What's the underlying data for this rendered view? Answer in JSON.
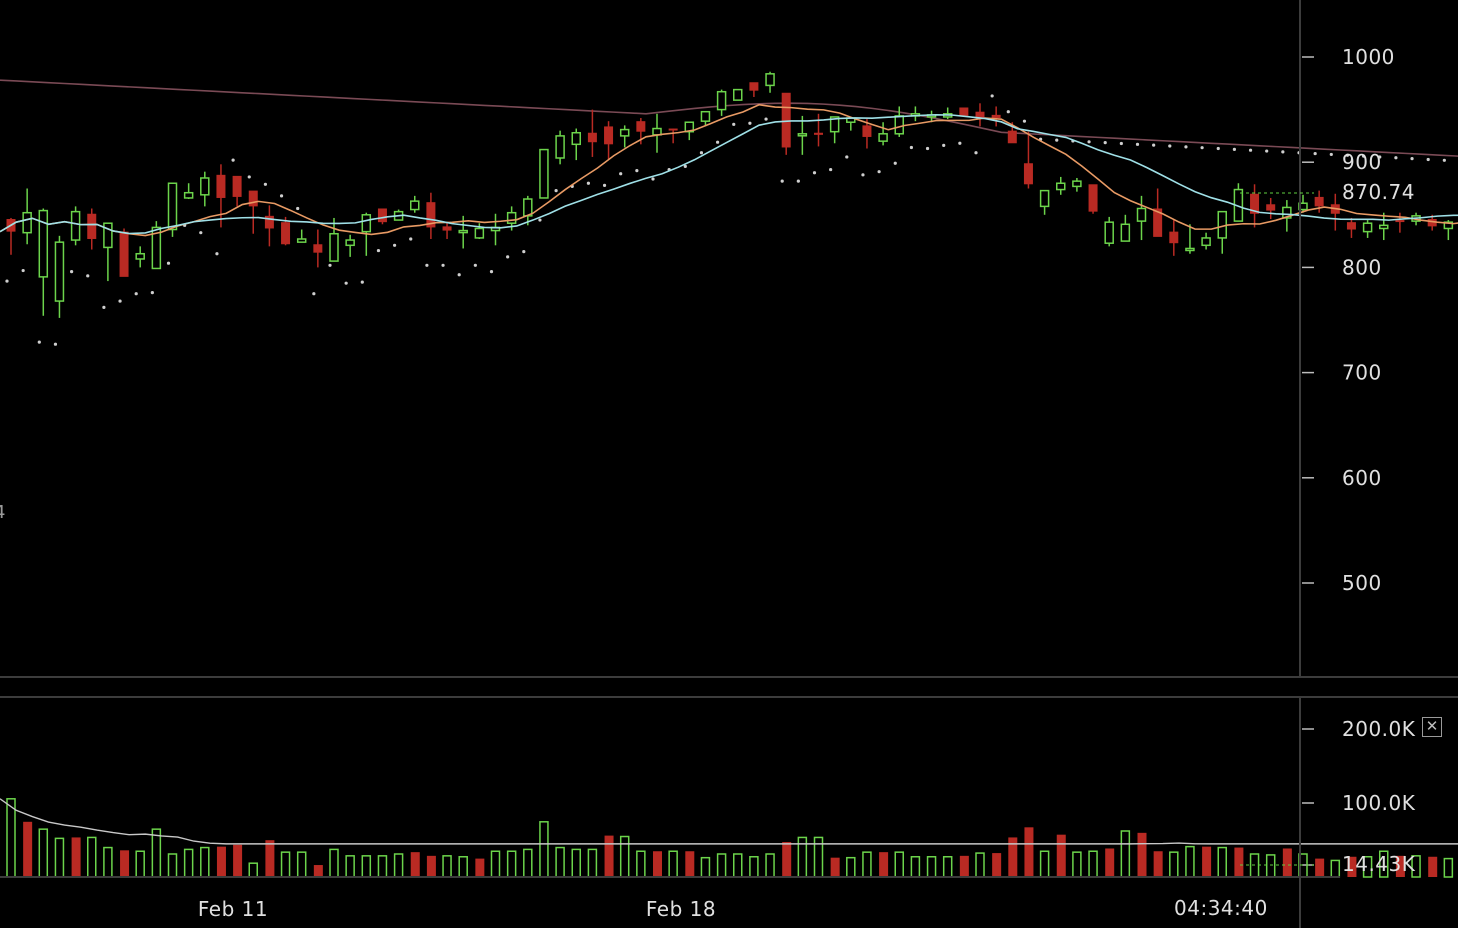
{
  "chart_data": {
    "type": "candlestick",
    "price_axis": {
      "ticks": [
        500,
        600,
        700,
        800,
        900,
        1000
      ],
      "labels": [
        "500",
        "600",
        "700",
        "800",
        "900",
        "1000"
      ],
      "ylim": [
        425,
        1065
      ]
    },
    "volume_axis": {
      "ticks": [
        14430,
        100000,
        200000
      ],
      "labels": [
        "14.43K",
        "100.0K",
        "200.0K"
      ]
    },
    "x_labels": [
      "Feb 11",
      "Feb 18"
    ],
    "last_price": "870.74",
    "last_volume": "14.43K",
    "clock": "04:34:40",
    "edge_text": "4",
    "colors": {
      "up": "#6cd44b",
      "down": "#b92a23",
      "ma_fast": "#e89a64",
      "ma_mid": "#9fe0e7",
      "ma_slow": "#7a4a55",
      "sar": "#cfcfcf",
      "volume_ma": "#c8c8c8",
      "grid": "#3a3a3a"
    },
    "candles": [
      [
        846,
        834,
        847,
        812
      ],
      [
        833,
        852,
        875,
        822
      ],
      [
        791,
        854,
        856,
        754
      ],
      [
        768,
        824,
        830,
        752
      ],
      [
        826,
        853,
        858,
        821
      ],
      [
        851,
        827,
        856,
        817
      ],
      [
        819,
        842,
        842,
        787
      ],
      [
        834,
        791,
        837,
        793
      ],
      [
        808,
        813,
        820,
        800
      ],
      [
        799,
        838,
        844,
        801
      ],
      [
        836,
        880,
        880,
        829
      ],
      [
        866,
        871,
        880,
        865
      ],
      [
        869,
        885,
        891,
        858
      ],
      [
        888,
        866,
        898,
        838
      ],
      [
        887,
        867,
        882,
        858
      ],
      [
        873,
        858,
        866,
        832
      ],
      [
        849,
        837,
        859,
        820
      ],
      [
        843,
        822,
        848,
        821
      ],
      [
        824,
        827,
        836,
        824
      ],
      [
        822,
        814,
        836,
        800
      ],
      [
        806,
        832,
        847,
        827
      ],
      [
        821,
        826,
        831,
        810
      ],
      [
        834,
        850,
        852,
        811
      ],
      [
        856,
        843,
        854,
        841
      ],
      [
        845,
        853,
        855,
        846
      ],
      [
        855,
        863,
        868,
        852
      ],
      [
        862,
        838,
        871,
        827
      ],
      [
        839,
        835,
        843,
        827
      ],
      [
        834,
        835,
        849,
        818
      ],
      [
        828,
        837,
        842,
        827
      ],
      [
        835,
        838,
        851,
        821
      ],
      [
        842,
        852,
        858,
        835
      ],
      [
        849,
        865,
        868,
        840
      ],
      [
        866,
        912,
        912,
        870
      ],
      [
        904,
        925,
        930,
        898
      ],
      [
        917,
        928,
        932,
        902
      ],
      [
        928,
        919,
        950,
        905
      ],
      [
        934,
        917,
        939,
        903
      ],
      [
        925,
        931,
        935,
        914
      ],
      [
        939,
        929,
        942,
        917
      ],
      [
        926,
        932,
        946,
        909
      ],
      [
        932,
        931,
        932,
        918
      ],
      [
        929,
        938,
        933,
        921
      ],
      [
        939,
        948,
        942,
        934
      ],
      [
        950,
        967,
        969,
        944
      ],
      [
        959,
        969,
        967,
        961
      ],
      [
        976,
        968,
        970,
        962
      ],
      [
        973,
        984,
        986,
        966
      ],
      [
        966,
        914,
        962,
        907
      ],
      [
        926,
        927,
        944,
        907
      ],
      [
        928,
        926,
        946,
        915
      ],
      [
        929,
        943,
        942,
        918
      ],
      [
        938,
        942,
        940,
        930
      ],
      [
        935,
        924,
        941,
        913
      ],
      [
        920,
        927,
        938,
        916
      ],
      [
        927,
        944,
        953,
        924
      ],
      [
        944,
        946,
        953,
        939
      ],
      [
        944,
        945,
        949,
        938
      ],
      [
        943,
        946,
        952,
        941
      ],
      [
        952,
        944,
        950,
        943
      ],
      [
        948,
        942,
        956,
        934
      ],
      [
        945,
        942,
        953,
        934
      ],
      [
        930,
        918,
        938,
        924
      ],
      [
        899,
        879,
        929,
        875
      ],
      [
        858,
        873,
        869,
        850
      ],
      [
        874,
        880,
        886,
        869
      ],
      [
        877,
        882,
        885,
        872
      ],
      [
        879,
        853,
        871,
        851
      ],
      [
        823,
        843,
        848,
        820
      ],
      [
        825,
        841,
        850,
        826
      ],
      [
        844,
        856,
        868,
        826
      ],
      [
        856,
        829,
        875,
        832
      ],
      [
        834,
        823,
        845,
        811
      ],
      [
        818,
        818,
        841,
        813
      ],
      [
        821,
        828,
        833,
        817
      ],
      [
        828,
        853,
        852,
        813
      ],
      [
        844,
        874,
        880,
        846
      ],
      [
        870,
        851,
        879,
        838
      ],
      [
        860,
        854,
        866,
        846
      ],
      [
        847,
        857,
        864,
        834
      ],
      [
        855,
        861,
        869,
        852
      ],
      [
        867,
        858,
        873,
        852
      ],
      [
        860,
        851,
        870,
        835
      ],
      [
        843,
        836,
        847,
        828
      ],
      [
        834,
        842,
        845,
        828
      ],
      [
        837,
        840,
        852,
        826
      ],
      [
        845,
        844,
        852,
        833
      ],
      [
        844,
        849,
        852,
        840
      ],
      [
        846,
        839,
        850,
        835
      ],
      [
        837,
        843,
        845,
        826
      ],
      [
        842,
        840,
        849,
        830
      ],
      [
        846,
        852,
        850,
        836
      ],
      [
        848,
        860,
        863,
        844
      ],
      [
        856,
        870,
        876,
        851
      ]
    ],
    "volumes": [
      85,
      60,
      52,
      42,
      43,
      43,
      32,
      29,
      28,
      52,
      25,
      30,
      32,
      33,
      35,
      15,
      40,
      27,
      27,
      13,
      30,
      23,
      23,
      23,
      25,
      27,
      23,
      23,
      22,
      20,
      28,
      28,
      30,
      60,
      32,
      30,
      30,
      45,
      44,
      28,
      28,
      28,
      28,
      21,
      25,
      25,
      22,
      25,
      38,
      43,
      43,
      21,
      21,
      27,
      27,
      27,
      22,
      22,
      22,
      23,
      26,
      26,
      43,
      54,
      28,
      46,
      27,
      28,
      31,
      50,
      48,
      28,
      27,
      33,
      33,
      32,
      32,
      25,
      24,
      31,
      25,
      20,
      18,
      22,
      22,
      28,
      23,
      23,
      22,
      20,
      20,
      20,
      18,
      10
    ],
    "volume_signs": [
      "u",
      "d",
      "u",
      "u",
      "d",
      "u",
      "u",
      "d",
      "u",
      "u",
      "u",
      "u",
      "u",
      "d",
      "d",
      "u",
      "d",
      "u",
      "u",
      "d",
      "u",
      "u",
      "u",
      "u",
      "u",
      "d",
      "d",
      "u",
      "u",
      "d",
      "u",
      "u",
      "u",
      "u",
      "u",
      "u",
      "u",
      "d",
      "u",
      "u",
      "d",
      "u",
      "d",
      "u",
      "u",
      "u",
      "u",
      "u",
      "d",
      "u",
      "u",
      "d",
      "u",
      "u",
      "d",
      "u",
      "u",
      "u",
      "u",
      "d",
      "u",
      "d",
      "d",
      "d",
      "u",
      "d",
      "u",
      "u",
      "d",
      "u",
      "d",
      "d",
      "u",
      "u",
      "d",
      "u",
      "d",
      "u",
      "u",
      "d",
      "u",
      "d",
      "u",
      "d",
      "u",
      "u",
      "d",
      "u",
      "d",
      "u",
      "u",
      "u",
      "u",
      "u"
    ]
  }
}
